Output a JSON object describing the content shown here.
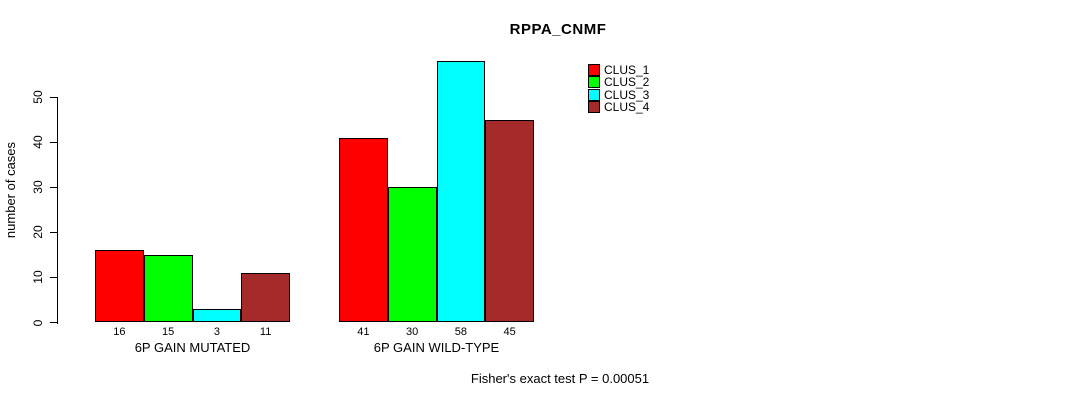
{
  "chart_data": {
    "type": "bar",
    "title": "RPPA_CNMF",
    "ylabel": "number of cases",
    "footer": "Fisher's exact test P = 0.00051",
    "categories": [
      "6P GAIN MUTATED",
      "6P GAIN WILD-TYPE"
    ],
    "series": [
      {
        "name": "CLUS_1",
        "color": "#ff0000",
        "values": [
          16,
          41
        ]
      },
      {
        "name": "CLUS_2",
        "color": "#00ff00",
        "values": [
          15,
          30
        ]
      },
      {
        "name": "CLUS_3",
        "color": "#00ffff",
        "values": [
          3,
          58
        ]
      },
      {
        "name": "CLUS_4",
        "color": "#a52a2a",
        "values": [
          11,
          45
        ]
      }
    ],
    "y_ticks": [
      0,
      10,
      20,
      30,
      40,
      50
    ],
    "ylim": [
      0,
      58
    ],
    "bar_value_labels_shown": true,
    "legend_position": "top-right-inside",
    "grid": false,
    "background_color": "#ffffff",
    "axis_color": "#000000"
  }
}
